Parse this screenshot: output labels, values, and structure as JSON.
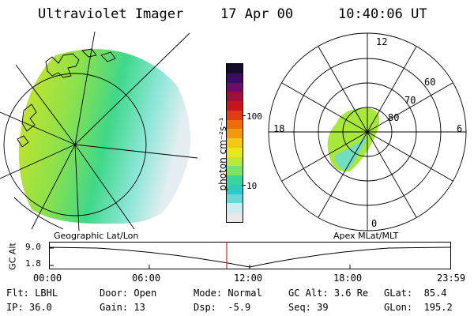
{
  "header": {
    "instrument": "Ultraviolet Imager",
    "date": "17 Apr 00",
    "time": "10:40:06 UT"
  },
  "colorbar": {
    "unit_label": "photon cm⁻²s⁻¹",
    "tick_100": "100",
    "tick_10": "10",
    "colors": [
      "#e8e8e8",
      "#c9eef0",
      "#67d8d6",
      "#2ec8c8",
      "#39d39c",
      "#7be36c",
      "#b6ea3a",
      "#e7ea1a",
      "#f2c812",
      "#f39a0c",
      "#ee6d0a",
      "#e23a12",
      "#c81320",
      "#9c0f3e",
      "#6a0f66",
      "#3a0d63",
      "#150c2c"
    ]
  },
  "left_map": {
    "projection_label": "Geographic Lat/Lon"
  },
  "right_polar": {
    "projection_label": "Apex MLat/MLT",
    "mlt_labels": {
      "top": "12",
      "left": "18",
      "right": "6",
      "bottom": "0"
    },
    "lat_labels": [
      "60",
      "70",
      "80"
    ]
  },
  "timeline": {
    "ylabel": "GC Alt",
    "y_ticks": [
      "9.0",
      "1.8"
    ],
    "x_ticks": [
      "00:00",
      "06:00",
      "12:00",
      "18:00",
      "23:59"
    ],
    "marker_color": "#e0281f"
  },
  "footer": {
    "flt": {
      "label": "Flt:",
      "value": "LBHL"
    },
    "ip": {
      "label": "IP:",
      "value": "36.0"
    },
    "door": {
      "label": "Door:",
      "value": "Open"
    },
    "gain": {
      "label": "Gain:",
      "value": "13"
    },
    "mode": {
      "label": "Mode:",
      "value": "Normal"
    },
    "dsp": {
      "label": "Dsp:",
      "value": "-5.9"
    },
    "gcalt": {
      "label": "GC Alt:",
      "value": "3.6 Re"
    },
    "seq": {
      "label": "Seq:",
      "value": "39"
    },
    "glat": {
      "label": "GLat:",
      "value": "85.4"
    },
    "glon": {
      "label": "GLon:",
      "value": "195.2"
    }
  }
}
